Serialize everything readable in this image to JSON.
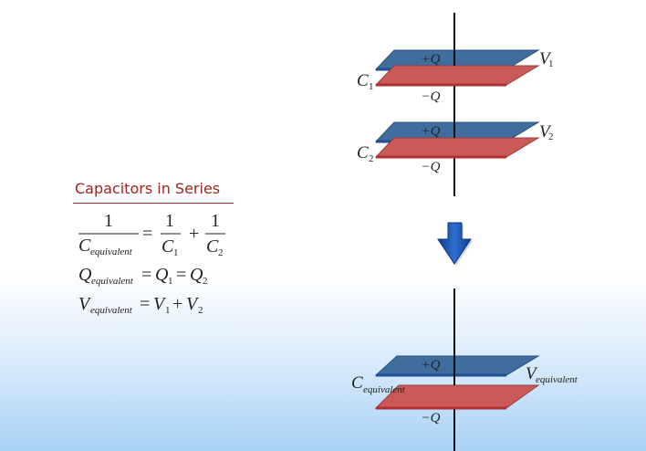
{
  "colors": {
    "top_plate": "#3f6e9e",
    "bottom_plate": "#c95a58",
    "title": "#9b2521",
    "arrow": "#1e57b5"
  },
  "title": "Capacitors in Series",
  "equations": {
    "eq1": {
      "numerator": "1",
      "c_letter": "C",
      "c_sub": "equivalent",
      "equals": "=",
      "term1_num": "1",
      "term1_den_letter": "C",
      "term1_den_sub": "1",
      "plus": "+",
      "term2_num": "1",
      "term2_den_letter": "C",
      "term2_den_sub": "2"
    },
    "eq2": {
      "lhs_letter": "Q",
      "lhs_sub": "equivalent",
      "eq1": "=",
      "q1_letter": "Q",
      "q1_sub": "1",
      "eq2": "=",
      "q2_letter": "Q",
      "q2_sub": "2"
    },
    "eq3": {
      "lhs_letter": "V",
      "lhs_sub": "equivalent",
      "eq": "=",
      "v1_letter": "V",
      "v1_sub": "1",
      "plus": "+",
      "v2_letter": "V",
      "v2_sub": "2"
    }
  },
  "capacitor1": {
    "label_letter": "C",
    "label_sub": "1",
    "voltage_letter": "V",
    "voltage_sub": "1",
    "plus_charge": "+Q",
    "minus_charge": "−Q"
  },
  "capacitor2": {
    "label_letter": "C",
    "label_sub": "2",
    "voltage_letter": "V",
    "voltage_sub": "2",
    "plus_charge": "+Q",
    "minus_charge": "−Q"
  },
  "equivalent": {
    "label_letter": "C",
    "label_sub": "equivalent",
    "voltage_letter": "V",
    "voltage_sub": "equivalent",
    "plus_charge": "+Q",
    "minus_charge": "−Q"
  }
}
